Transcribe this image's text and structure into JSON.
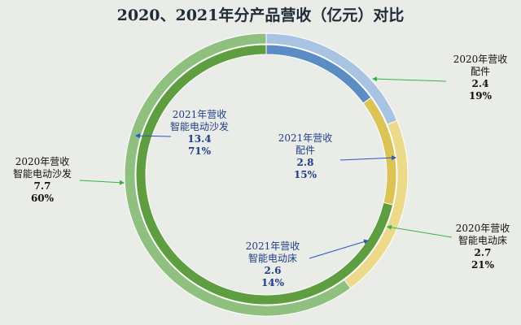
{
  "chart_data": {
    "type": "pie",
    "title": "2020、2021年分产品营收（亿元）对比",
    "rings": [
      {
        "name": "2020年营收",
        "slices": [
          {
            "category": "配件",
            "value": 2.4,
            "percent": "19%",
            "color": "#a9c3e2"
          },
          {
            "category": "智能电动床",
            "value": 2.7,
            "percent": "21%",
            "color": "#ecd98a"
          },
          {
            "category": "智能电动沙发",
            "value": 7.7,
            "percent": "60%",
            "color": "#8fc07f"
          }
        ]
      },
      {
        "name": "2021年营收",
        "slices": [
          {
            "category": "配件",
            "value": 2.8,
            "percent": "15%",
            "color": "#5b8cc4"
          },
          {
            "category": "智能电动床",
            "value": 2.6,
            "percent": "14%",
            "color": "#dcc356"
          },
          {
            "category": "智能电动沙发",
            "value": 13.4,
            "percent": "71%",
            "color": "#5f9e40"
          }
        ]
      }
    ],
    "legend": "none (callout labels)",
    "grid": false
  },
  "labels": {
    "o0": {
      "year": "2020年营收",
      "cat": "配件",
      "val": "2.4",
      "pct": "19%"
    },
    "o1": {
      "year": "2020年营收",
      "cat": "智能电动床",
      "val": "2.7",
      "pct": "21%"
    },
    "o2": {
      "year": "2020年营收",
      "cat": "智能电动沙发",
      "val": "7.7",
      "pct": "60%"
    },
    "i0": {
      "year": "2021年营收",
      "cat": "配件",
      "val": "2.8",
      "pct": "15%"
    },
    "i1": {
      "year": "2021年营收",
      "cat": "智能电动床",
      "val": "2.6",
      "pct": "14%"
    },
    "i2": {
      "year": "2021年营收",
      "cat": "智能电动沙发",
      "val": "13.4",
      "pct": "71%"
    }
  },
  "colors": {
    "arrow_outer": "#33b24a",
    "arrow_inner": "#2b59b8",
    "background": "#e9ece7"
  }
}
